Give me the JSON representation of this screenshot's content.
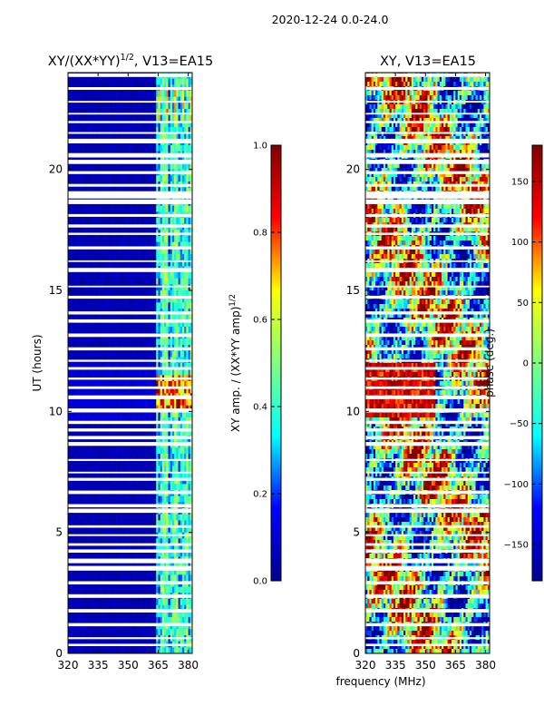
{
  "figure_title": "2020-12-24 0.0-24.0",
  "shared_xlabel": "frequency (MHz)",
  "colormap": [
    "#00008f",
    "#0000ff",
    "#00ffff",
    "#7fff7f",
    "#ffff00",
    "#ff0000",
    "#800000"
  ],
  "gap_color": "#ffffff",
  "chart_data": [
    {
      "type": "heatmap",
      "title_main": "XY/(XX*YY)",
      "title_exp": "1/2",
      "title_tail": ", V13=EA15",
      "ylabel": "UT (hours)",
      "x_range": [
        320,
        382
      ],
      "x_ticks": [
        320,
        335,
        350,
        365,
        380
      ],
      "y_range": [
        0,
        24
      ],
      "y_ticks": [
        0,
        5,
        10,
        15,
        20
      ],
      "colorbar": {
        "label_main": "XY amp. / (XX*YY amp)",
        "label_exp": "1/2",
        "range": [
          0.0,
          1.0
        ],
        "ticks": [
          "0.0",
          "0.2",
          "0.4",
          "0.6",
          "0.8",
          "1.0"
        ]
      },
      "blank_band_hours": [
        18.8,
        19.1
      ],
      "bright_band_hours": [
        9.9,
        11.4
      ],
      "active_freq_MHz": [
        364,
        382
      ],
      "dark_freq_MHz": [
        320,
        364
      ]
    },
    {
      "type": "heatmap",
      "title_main": "XY, V13=EA15",
      "ylabel": "",
      "x_range": [
        320,
        382
      ],
      "x_ticks": [
        320,
        335,
        350,
        365,
        380
      ],
      "y_range": [
        0,
        24
      ],
      "y_ticks": [
        0,
        5,
        10,
        15,
        20
      ],
      "colorbar": {
        "label_main": "phase (deg.)",
        "range": [
          -180,
          180
        ],
        "ticks": [
          "−150",
          "−100",
          "−50",
          "0",
          "50",
          "100",
          "150"
        ]
      },
      "blank_band_hours": [
        18.8,
        19.1
      ]
    }
  ]
}
